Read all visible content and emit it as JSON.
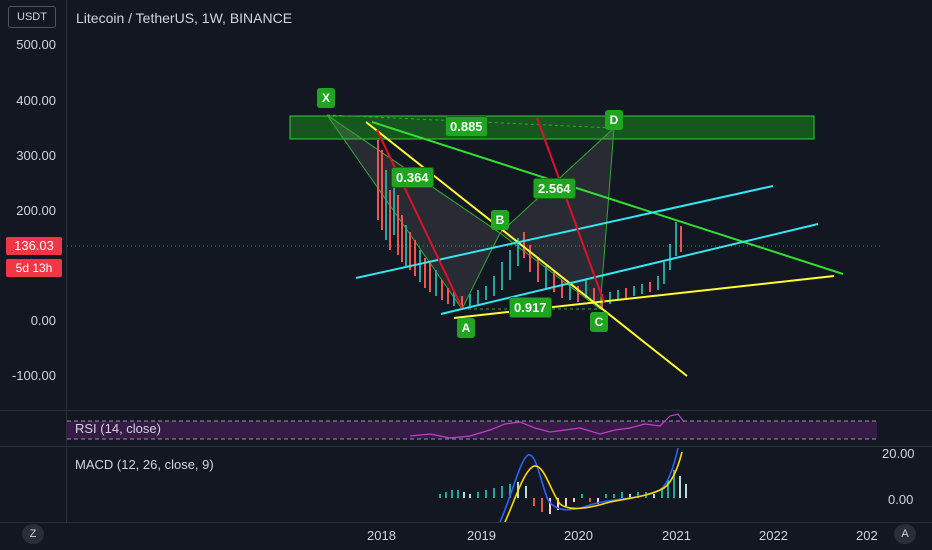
{
  "header": {
    "currency_button": "USDT",
    "title": "Litecoin / TetherUS, 1W, BINANCE"
  },
  "price_axis": {
    "ticks": [
      "500.00",
      "400.00",
      "300.00",
      "200.00",
      "0.00",
      "-100.00"
    ],
    "last_price": "136.03",
    "countdown": "5d 13h"
  },
  "time_axis": {
    "ticks": [
      "2018",
      "2019",
      "2020",
      "2021",
      "2022",
      "202"
    ]
  },
  "pattern": {
    "points": [
      "X",
      "A",
      "B",
      "C",
      "D"
    ],
    "ratios": [
      "0.885",
      "0.364",
      "2.564",
      "0.917"
    ]
  },
  "indicators": {
    "rsi_label": "RSI (14, close)",
    "macd_label": "MACD (12, 26, close, 9)",
    "macd_ticks": [
      "20.00",
      "0.00"
    ]
  },
  "controls": {
    "left_corner": "Z",
    "right_corner": "A"
  },
  "colors": {
    "background": "#131722",
    "last_price": "#f23645",
    "pattern_green": "#1fa51f",
    "trend_yellow": "#ffff33",
    "trend_cyan": "#33e6f0",
    "trend_red": "#e0102a",
    "rsi_purple": "#9c27b0"
  }
}
